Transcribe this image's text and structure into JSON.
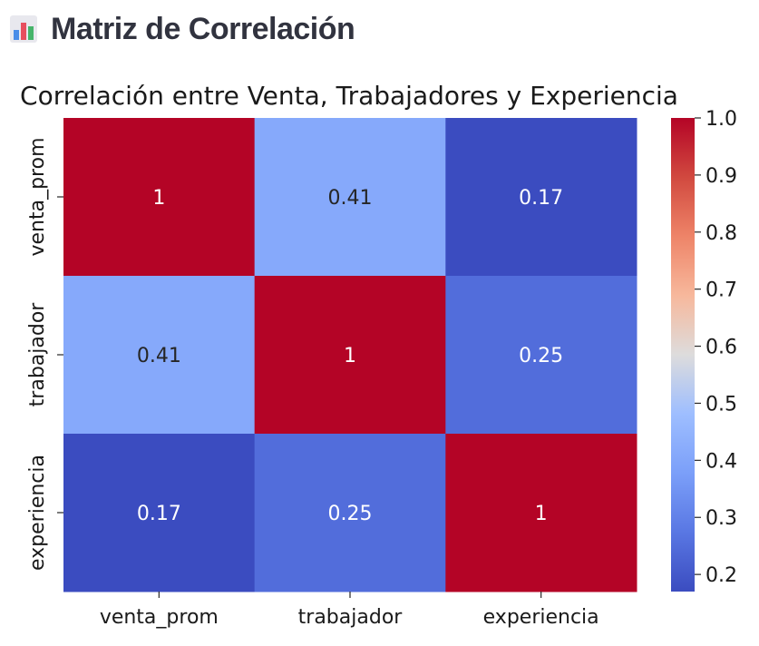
{
  "page": {
    "title": "Matriz de Correlación",
    "icon": "bar-chart-icon"
  },
  "chart_data": {
    "type": "heatmap",
    "title": "Correlación entre Venta, Trabajadores y Experiencia",
    "rows": [
      "venta_prom",
      "trabajador",
      "experiencia"
    ],
    "columns": [
      "venta_prom",
      "trabajador",
      "experiencia"
    ],
    "values": [
      [
        1,
        0.41,
        0.17
      ],
      [
        0.41,
        1,
        0.25
      ],
      [
        0.17,
        0.25,
        1
      ]
    ],
    "annotations": [
      [
        "1",
        "0.41",
        "0.17"
      ],
      [
        "0.41",
        "1",
        "0.25"
      ],
      [
        "0.17",
        "0.25",
        "1"
      ]
    ],
    "colormap": "coolwarm",
    "colorbar": {
      "min": 0.17,
      "max": 1.0,
      "ticks": [
        1.0,
        0.9,
        0.8,
        0.7,
        0.6,
        0.5,
        0.4,
        0.3,
        0.2
      ],
      "tick_labels": [
        "1.0",
        "0.9",
        "0.8",
        "0.7",
        "0.6",
        "0.5",
        "0.4",
        "0.3",
        "0.2"
      ]
    },
    "xlabel": "",
    "ylabel": ""
  }
}
